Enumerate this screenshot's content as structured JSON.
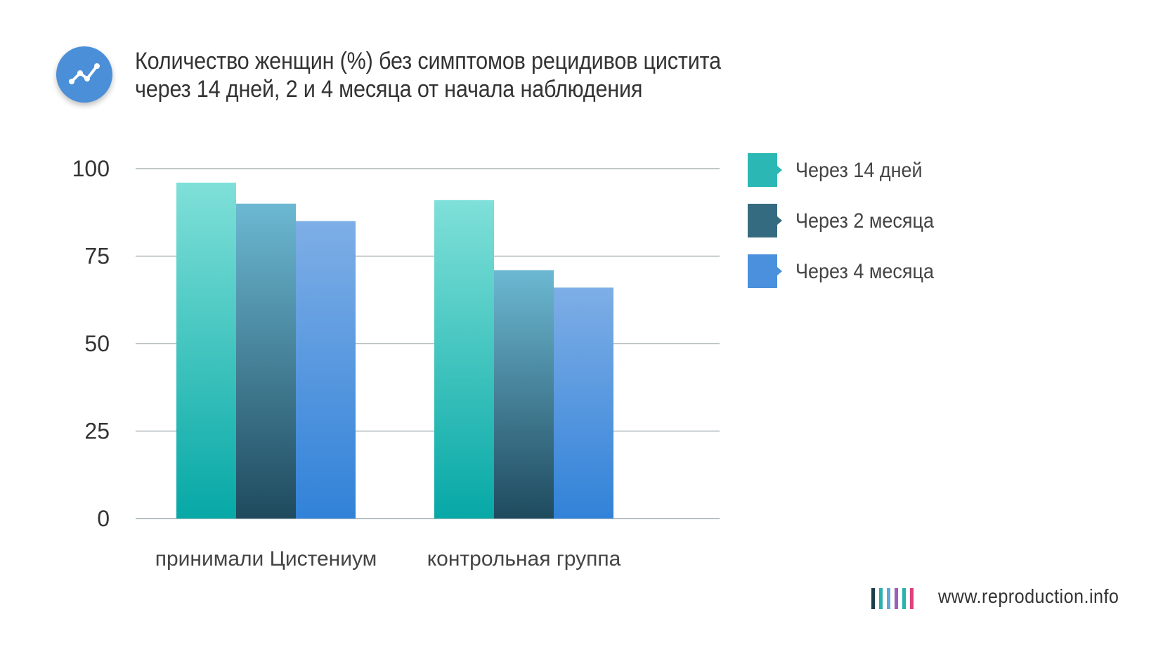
{
  "title": {
    "line1": "Количество женщин (%) без симптомов рецидивов цистита",
    "line2": "через 14 дней, 2 и 4 месяца от начала наблюдения",
    "icon": "line-chart-icon"
  },
  "chart_data": {
    "type": "bar",
    "categories": [
      "принимали Цистениум",
      "контрольная группа"
    ],
    "series": [
      {
        "name": "Через 14 дней",
        "values": [
          96,
          91
        ],
        "color_top": "#7fe0d8",
        "color_bottom": "#06a8a6"
      },
      {
        "name": "Через 2 месяца",
        "values": [
          90,
          71
        ],
        "color_top": "#6cb8d2",
        "color_bottom": "#1f4a5e"
      },
      {
        "name": "Через 4 месяца",
        "values": [
          85,
          66
        ],
        "color_top": "#7eaee6",
        "color_bottom": "#3182d8"
      }
    ],
    "yticks": [
      0,
      25,
      50,
      75,
      100
    ],
    "ylim": [
      0,
      100
    ],
    "grid": true,
    "legend_position": "right",
    "xlabel": "",
    "ylabel": ""
  },
  "legend": {
    "items": [
      {
        "label": "Через 14 дней",
        "color": "#2bb8b4"
      },
      {
        "label": "Через 2 месяца",
        "color": "#356b80"
      },
      {
        "label": "Через 4 месяца",
        "color": "#4a90dc"
      }
    ]
  },
  "footer": {
    "url": "www.reproduction.info",
    "logo_colors": [
      "#1c3d4c",
      "#2ab2ae",
      "#5fa8dc",
      "#9c5fb8",
      "#2ab2ae",
      "#e0407c"
    ]
  }
}
